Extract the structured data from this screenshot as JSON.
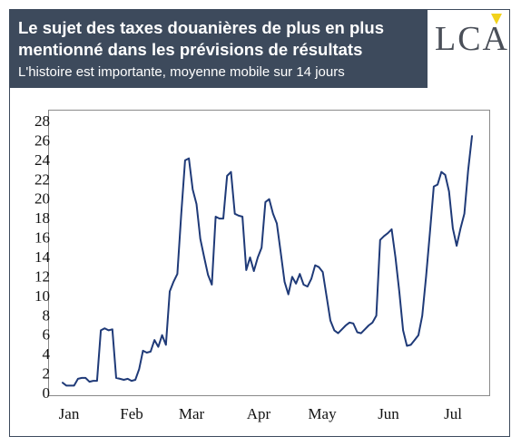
{
  "header": {
    "title": "Le sujet des taxes douanières de plus en plus mentionné dans les prévisions de résultats",
    "subtitle": "L'histoire est importante, moyenne mobile sur 14 jours"
  },
  "logo": {
    "text": "LCA",
    "accent_color": "#f2d21b"
  },
  "colors": {
    "header_bg": "#3d4a5c",
    "line": "#1f3a78",
    "frame": "#3d4a5c"
  },
  "chart_data": {
    "type": "line",
    "title": "",
    "xlabel": "",
    "ylabel": "",
    "ylim": [
      0,
      28
    ],
    "yticks": [
      0,
      2,
      4,
      6,
      8,
      10,
      12,
      14,
      16,
      18,
      20,
      22,
      24,
      26,
      28
    ],
    "x_tick_labels": [
      "Jan",
      "Feb",
      "Mar",
      "Apr",
      "May",
      "Jun",
      "Jul"
    ],
    "grid": false,
    "series": [
      {
        "values": [
          1.1,
          0.8,
          0.8,
          0.8,
          1.5,
          1.6,
          1.6,
          1.2,
          1.3,
          1.3,
          6.5,
          6.7,
          6.5,
          6.6,
          1.6,
          1.5,
          1.4,
          1.5,
          1.3,
          1.4,
          2.5,
          4.4,
          4.2,
          4.3,
          5.5,
          4.8,
          6.0,
          5.0,
          10.5,
          11.5,
          12.3,
          18.5,
          24.0,
          24.2,
          21.0,
          19.5,
          15.9,
          14.0,
          12.2,
          11.2,
          18.2,
          18.0,
          18.0,
          22.4,
          22.8,
          18.5,
          18.3,
          18.2,
          12.7,
          14.0,
          12.6,
          14.0,
          15.0,
          19.7,
          20.0,
          18.5,
          17.5,
          14.5,
          11.5,
          10.2,
          12.0,
          11.3,
          12.3,
          11.2,
          11.0,
          11.8,
          13.2,
          13.0,
          12.5,
          10.0,
          7.5,
          6.5,
          6.2,
          6.6,
          7.0,
          7.3,
          7.2,
          6.3,
          6.2,
          6.6,
          7.0,
          7.3,
          8.0,
          15.8,
          16.2,
          16.5,
          16.9,
          14.0,
          10.5,
          6.5,
          4.9,
          5.0,
          5.5,
          6.0,
          8.0,
          12.0,
          16.5,
          21.3,
          21.5,
          22.8,
          22.5,
          20.8,
          17.0,
          15.2,
          17.0,
          18.5,
          23.0,
          26.5
        ]
      }
    ]
  }
}
